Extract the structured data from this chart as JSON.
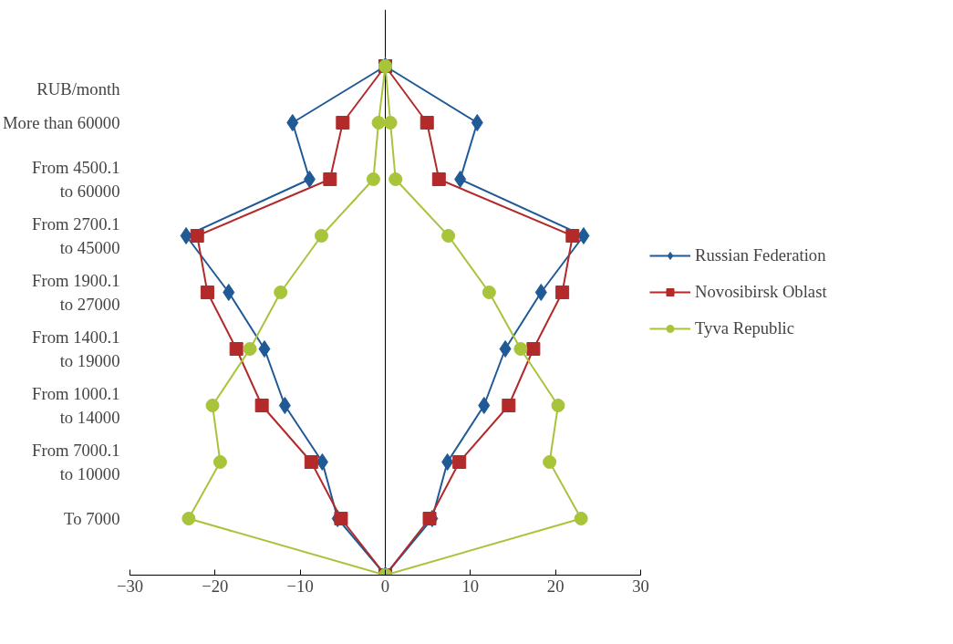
{
  "chart_data": {
    "type": "line",
    "orientation": "horizontal",
    "categories": [
      null,
      "More than 60000",
      "From 4500.1\nto 60000",
      "From 2700.1\nto 45000",
      "From 1900.1\nto 27000",
      "From 1400.1\nto 19000",
      "From 1000.1\nto 14000",
      "From 7000.1\nto 10000",
      "To 7000",
      null
    ],
    "series": [
      {
        "name": "Russian Federation",
        "color": "#1f5a96",
        "marker": "diamond",
        "values": [
          0,
          10.8,
          8.8,
          23.3,
          18.3,
          14.1,
          11.6,
          7.3,
          5.5,
          0
        ]
      },
      {
        "color": "#1f5a96",
        "marker": "diamond",
        "values": [
          0,
          -10.9,
          -8.9,
          -23.4,
          -18.4,
          -14.2,
          -11.8,
          -7.4,
          -5.6,
          0
        ]
      },
      {
        "name": "Novosibirsk Oblast",
        "color": "#b22a2a",
        "marker": "square",
        "values": [
          0,
          4.9,
          6.3,
          22.0,
          20.8,
          17.4,
          14.5,
          8.7,
          5.2,
          0
        ]
      },
      {
        "color": "#b22a2a",
        "marker": "square",
        "values": [
          0,
          -5.0,
          -6.5,
          -22.1,
          -20.9,
          -17.5,
          -14.5,
          -8.7,
          -5.2,
          0
        ]
      },
      {
        "name": "Tyva Republic",
        "color": "#a8c43a",
        "marker": "circle",
        "values": [
          0,
          0.6,
          1.2,
          7.4,
          12.2,
          15.9,
          20.3,
          19.3,
          23.0,
          0
        ]
      },
      {
        "color": "#a8c43a",
        "marker": "circle",
        "values": [
          0,
          -0.8,
          -1.4,
          -7.5,
          -12.3,
          -15.9,
          -20.3,
          -19.4,
          -23.1,
          0
        ]
      }
    ],
    "xlim": [
      -30,
      30
    ],
    "xticks": [
      -30,
      -20,
      -10,
      0,
      10,
      20,
      30
    ],
    "ref_lines": [
      {
        "axis": "x",
        "value": 0,
        "color": "#000000"
      }
    ],
    "annotations": [
      "RUB/month"
    ],
    "grid": false,
    "legend": "right"
  }
}
